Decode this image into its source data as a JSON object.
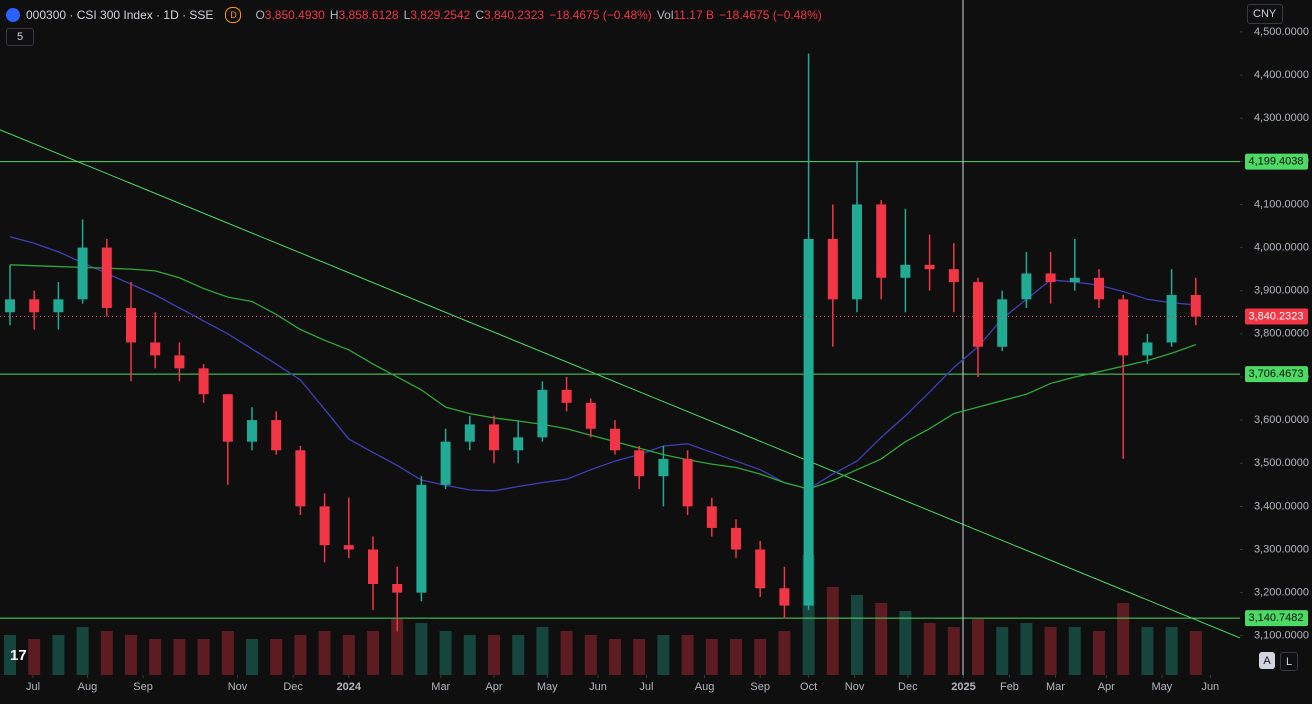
{
  "chart_data": {
    "type": "candlestick",
    "title": "000300 · CSI 300 Index · 1D · SSE",
    "interval_badge": "D",
    "header_values": [
      {
        "label": "O",
        "value": "3,850.4930"
      },
      {
        "label": "H",
        "value": "3,858.6128"
      },
      {
        "label": "L",
        "value": "3,829.2542"
      },
      {
        "label": "C",
        "value": "3,840.2323"
      },
      {
        "label": "",
        "value": "−18.4675 (−0.48%)"
      }
    ],
    "volume_header": {
      "label": "Vol",
      "value": "11.17 B",
      "change": "−18.4675 (−0.48%)"
    },
    "indicator_count": "5",
    "currency": "CNY",
    "scale_buttons": [
      "A",
      "L"
    ],
    "ylim": [
      3009,
      4574
    ],
    "yticks": [
      {
        "value": 3100,
        "label": "3,100.0000"
      },
      {
        "value": 3200,
        "label": "3,200.0000"
      },
      {
        "value": 3300,
        "label": "3,300.0000"
      },
      {
        "value": 3400,
        "label": "3,400.0000"
      },
      {
        "value": 3500,
        "label": "3,500.0000"
      },
      {
        "value": 3600,
        "label": "3,600.0000"
      },
      {
        "value": 3700,
        "label": "3,700.0000"
      },
      {
        "value": 3800,
        "label": "3,800.0000"
      },
      {
        "value": 3900,
        "label": "3,900.0000"
      },
      {
        "value": 4000,
        "label": "4,000.0000"
      },
      {
        "value": 4100,
        "label": "4,100.0000"
      },
      {
        "value": 4200,
        "label": "4,200.0000"
      },
      {
        "value": 4300,
        "label": "4,300.0000"
      },
      {
        "value": 4400,
        "label": "4,400.0000"
      },
      {
        "value": 4500,
        "label": "4,500.0000"
      }
    ],
    "xticks": [
      {
        "value": 0.95,
        "label": "Jul"
      },
      {
        "value": 3.2,
        "label": "Aug"
      },
      {
        "value": 5.5,
        "label": "Sep"
      },
      {
        "value": 9.4,
        "label": "Nov"
      },
      {
        "value": 11.7,
        "label": "Dec"
      },
      {
        "value": 14.0,
        "label": "2024"
      },
      {
        "value": 17.8,
        "label": "Mar"
      },
      {
        "value": 20.0,
        "label": "Apr"
      },
      {
        "value": 22.2,
        "label": "May"
      },
      {
        "value": 24.3,
        "label": "Jun"
      },
      {
        "value": 26.3,
        "label": "Jul"
      },
      {
        "value": 28.7,
        "label": "Aug"
      },
      {
        "value": 31.0,
        "label": "Sep"
      },
      {
        "value": 33.0,
        "label": "Oct"
      },
      {
        "value": 34.9,
        "label": "Nov"
      },
      {
        "value": 37.1,
        "label": "Dec"
      },
      {
        "value": 39.4,
        "label": "2025"
      },
      {
        "value": 41.3,
        "label": "Feb"
      },
      {
        "value": 43.2,
        "label": "Mar"
      },
      {
        "value": 45.3,
        "label": "Apr"
      },
      {
        "value": 47.6,
        "label": "May"
      },
      {
        "value": 49.6,
        "label": "Jun"
      }
    ],
    "up_color": "#22ab94",
    "down_color": "#f23645",
    "open": [
      3850,
      3880,
      3850,
      3880,
      4000,
      3860,
      3780,
      3750,
      3720,
      3660,
      3550,
      3600,
      3530,
      3400,
      3310,
      3300,
      3220,
      3200,
      3450,
      3550,
      3590,
      3530,
      3560,
      3670,
      3640,
      3580,
      3530,
      3470,
      3510,
      3400,
      3350,
      3300,
      3210,
      3170,
      4020,
      3880,
      4100,
      3930,
      3960,
      3950,
      3920,
      3770,
      3880,
      3940,
      3920,
      3930,
      3880,
      3750,
      3780,
      3890
    ],
    "high": [
      3960,
      3900,
      3920,
      4065,
      4020,
      3920,
      3850,
      3780,
      3730,
      3660,
      3630,
      3620,
      3540,
      3430,
      3420,
      3330,
      3260,
      3470,
      3580,
      3610,
      3610,
      3600,
      3690,
      3700,
      3650,
      3600,
      3540,
      3540,
      3530,
      3420,
      3370,
      3320,
      3260,
      4450,
      4100,
      4200,
      4110,
      4090,
      4030,
      4010,
      3930,
      3900,
      3990,
      3990,
      4020,
      3950,
      3890,
      3800,
      3950,
      3930
    ],
    "low": [
      3820,
      3810,
      3810,
      3870,
      3840,
      3690,
      3720,
      3690,
      3640,
      3450,
      3530,
      3520,
      3380,
      3270,
      3280,
      3160,
      3110,
      3180,
      3440,
      3530,
      3500,
      3500,
      3550,
      3620,
      3560,
      3520,
      3440,
      3400,
      3380,
      3330,
      3280,
      3190,
      3140,
      3160,
      3770,
      3850,
      3880,
      3850,
      3900,
      3850,
      3700,
      3760,
      3860,
      3870,
      3900,
      3860,
      3510,
      3730,
      3770,
      3820
    ],
    "close": [
      3880,
      3850,
      3880,
      4000,
      3860,
      3780,
      3750,
      3720,
      3660,
      3550,
      3600,
      3530,
      3400,
      3310,
      3300,
      3220,
      3200,
      3450,
      3550,
      3590,
      3530,
      3560,
      3670,
      3640,
      3580,
      3530,
      3470,
      3510,
      3400,
      3350,
      3300,
      3210,
      3170,
      4020,
      3880,
      4100,
      3930,
      3960,
      3950,
      3920,
      3770,
      3880,
      3940,
      3920,
      3930,
      3880,
      3750,
      3780,
      3890,
      3840
    ],
    "volume": [
      10,
      9,
      10,
      12,
      11,
      10,
      9,
      9,
      9,
      11,
      9,
      9,
      10,
      11,
      10,
      11,
      14,
      13,
      11,
      10,
      10,
      10,
      12,
      11,
      10,
      9,
      9,
      10,
      10,
      9,
      9,
      9,
      11,
      30,
      22,
      20,
      18,
      16,
      13,
      12,
      14,
      12,
      13,
      12,
      12,
      11,
      18,
      12,
      12,
      11
    ],
    "moving_averages": [
      {
        "color": "#3f3fb8",
        "values": [
          4025,
          4010,
          3990,
          3965,
          3940,
          3915,
          3890,
          3860,
          3830,
          3800,
          3765,
          3730,
          3693,
          3625,
          3556,
          3525,
          3495,
          3461,
          3449,
          3438,
          3436,
          3446,
          3455,
          3463,
          3485,
          3505,
          3520,
          3540,
          3545,
          3525,
          3505,
          3485,
          3455,
          3440,
          3475,
          3505,
          3560,
          3610,
          3665,
          3722,
          3770,
          3835,
          3880,
          3925,
          3920,
          3913,
          3898,
          3880,
          3872,
          3867
        ]
      },
      {
        "color": "#2fa83a",
        "values": [
          3960,
          3958,
          3956,
          3954,
          3952,
          3950,
          3946,
          3930,
          3905,
          3885,
          3875,
          3845,
          3810,
          3785,
          3763,
          3730,
          3700,
          3670,
          3630,
          3615,
          3605,
          3598,
          3590,
          3580,
          3565,
          3550,
          3535,
          3520,
          3508,
          3498,
          3490,
          3475,
          3455,
          3440,
          3460,
          3485,
          3510,
          3550,
          3580,
          3615,
          3630,
          3645,
          3660,
          3685,
          3700,
          3712,
          3725,
          3738,
          3755,
          3775
        ]
      }
    ],
    "levels": [
      {
        "value": 4199.4038,
        "label": "4,199.4038"
      },
      {
        "value": 3706.4673,
        "label": "3,706.4673"
      },
      {
        "value": 3140.7482,
        "label": "3,140.7482"
      }
    ],
    "level_color": "#4cd964",
    "last_price": {
      "value": 3840.2323,
      "label": "3,840.2323"
    },
    "trend_line": {
      "x": [
        -0.41,
        50.83
      ],
      "values": [
        4273,
        3095
      ]
    }
  }
}
